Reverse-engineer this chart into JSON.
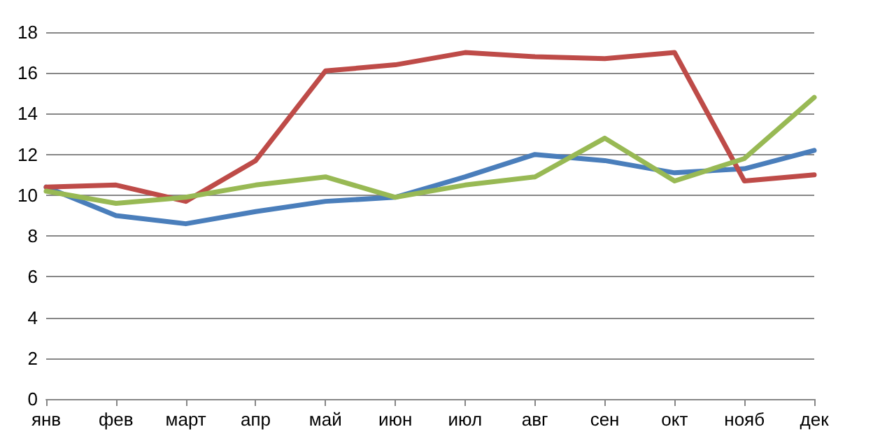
{
  "chart_data": {
    "type": "line",
    "categories": [
      "янв",
      "фев",
      "март",
      "апр",
      "май",
      "июн",
      "июл",
      "авг",
      "сен",
      "окт",
      "нояб",
      "дек"
    ],
    "series": [
      {
        "color": "#4a7ebb",
        "values": [
          10.4,
          9.0,
          8.6,
          9.2,
          9.7,
          9.9,
          10.9,
          12.0,
          11.7,
          11.1,
          11.3,
          12.2
        ]
      },
      {
        "color": "#be4b48",
        "values": [
          10.4,
          10.5,
          9.7,
          11.7,
          16.1,
          16.4,
          17.0,
          16.8,
          16.7,
          17.0,
          10.7,
          11.0
        ]
      },
      {
        "color": "#98b954",
        "values": [
          10.2,
          9.6,
          9.9,
          10.5,
          10.9,
          9.9,
          10.5,
          10.9,
          12.8,
          10.7,
          11.8,
          14.8
        ]
      }
    ],
    "ylim": [
      0,
      18
    ],
    "yticks": [
      0,
      2,
      4,
      6,
      8,
      10,
      12,
      14,
      16,
      18
    ],
    "grid": "y",
    "marker": "none",
    "line_style": "solid"
  }
}
